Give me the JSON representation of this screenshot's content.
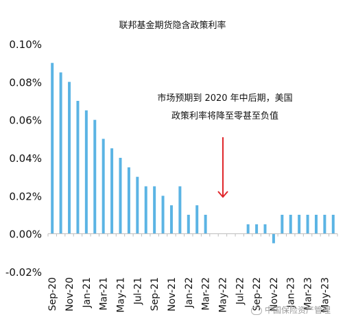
{
  "chart_data": {
    "type": "bar",
    "title": "联邦基金期货隐含政策利率",
    "annotation": "市场预期到 2020 年中后期，美国政策利率将降至零甚至负值",
    "annotation_lines": [
      "市场预期到 2020 年中后期，美国",
      "政策利率将降至零甚至负值"
    ],
    "ylim": [
      -0.02,
      0.1
    ],
    "yticks": [
      "-0.02%",
      "0.00%",
      "0.02%",
      "0.04%",
      "0.06%",
      "0.08%",
      "0.10%"
    ],
    "ytick_values": [
      -0.02,
      0.0,
      0.02,
      0.04,
      0.06,
      0.08,
      0.1
    ],
    "categories": [
      "Sep-20",
      "Oct-20",
      "Nov-20",
      "Dec-20",
      "Jan-21",
      "Feb-21",
      "Mar-21",
      "Apr-21",
      "May-21",
      "Jun-21",
      "Jul-21",
      "Aug-21",
      "Sep-21",
      "Oct-21",
      "Nov-21",
      "Dec-21",
      "Jan-22",
      "Feb-22",
      "Mar-22",
      "Apr-22",
      "May-22",
      "Jun-22",
      "Jul-22",
      "Aug-22",
      "Sep-22",
      "Oct-22",
      "Nov-22",
      "Dec-22",
      "Jan-23",
      "Feb-23",
      "Mar-23",
      "Apr-23",
      "May-23",
      "Jun-23"
    ],
    "xtick_labels": [
      "Sep-20",
      "Nov-20",
      "Jan-21",
      "Mar-21",
      "May-21",
      "Jul-21",
      "Sep-21",
      "Nov-21",
      "Jan-22",
      "Mar-22",
      "May-22",
      "Jul-22",
      "Sep-22",
      "Nov-22",
      "Jan-23",
      "Mar-23",
      "May-23"
    ],
    "values": [
      0.09,
      0.085,
      0.08,
      0.07,
      0.065,
      0.06,
      0.05,
      0.045,
      0.04,
      0.035,
      0.03,
      0.025,
      0.025,
      0.02,
      0.015,
      0.025,
      0.01,
      0.015,
      0.01,
      0.0,
      0.0,
      0.0,
      0.0,
      0.005,
      0.005,
      0.005,
      -0.005,
      0.01,
      0.01,
      0.01,
      0.01,
      0.01,
      0.01,
      0.01
    ],
    "bar_color": "#5BB4E4",
    "arrow_color": "#E0262B",
    "grid": false
  },
  "watermark": "中国保险资产管理"
}
